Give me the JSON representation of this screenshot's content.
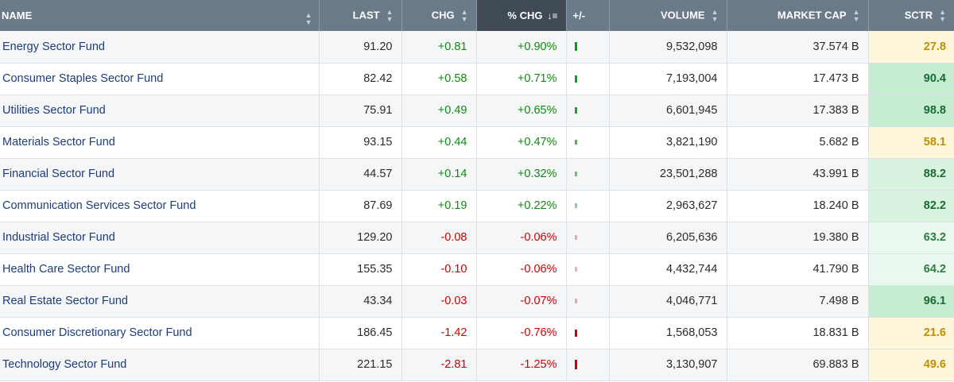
{
  "columns": {
    "name": "NAME",
    "last": "LAST",
    "chg": "CHG",
    "pct_chg": "% CHG",
    "plus_minus": "+/-",
    "volume": "VOLUME",
    "market_cap": "MARKET CAP",
    "sctr": "SCTR"
  },
  "icons": {
    "sort_neutral": "sort-updown-icon",
    "sort_active": "sort-descending-icon"
  },
  "colors": {
    "header_bg": "#6b7a89",
    "header_active_bg": "#3f4a55",
    "positive": "#108a10",
    "negative": "#d10000",
    "name_link": "#1d3d7a",
    "sctr_high_bg": "#c6edd2",
    "sctr_mid_bg": "#eaf7ee",
    "sctr_low_bg": "#fdf6da"
  },
  "rows": [
    {
      "name": "Energy Sector Fund",
      "last": "91.20",
      "chg": "+0.81",
      "pct_chg": "+0.90%",
      "direction": "up",
      "pct_value": 0.9,
      "volume": "9,532,098",
      "market_cap": "37.574 B",
      "sctr": "27.8",
      "sctr_value": 27.8
    },
    {
      "name": "Consumer Staples Sector Fund",
      "last": "82.42",
      "chg": "+0.58",
      "pct_chg": "+0.71%",
      "direction": "up",
      "pct_value": 0.71,
      "volume": "7,193,004",
      "market_cap": "17.473 B",
      "sctr": "90.4",
      "sctr_value": 90.4
    },
    {
      "name": "Utilities Sector Fund",
      "last": "75.91",
      "chg": "+0.49",
      "pct_chg": "+0.65%",
      "direction": "up",
      "pct_value": 0.65,
      "volume": "6,601,945",
      "market_cap": "17.383 B",
      "sctr": "98.8",
      "sctr_value": 98.8
    },
    {
      "name": "Materials Sector Fund",
      "last": "93.15",
      "chg": "+0.44",
      "pct_chg": "+0.47%",
      "direction": "up",
      "pct_value": 0.47,
      "volume": "3,821,190",
      "market_cap": "5.682 B",
      "sctr": "58.1",
      "sctr_value": 58.1
    },
    {
      "name": "Financial Sector Fund",
      "last": "44.57",
      "chg": "+0.14",
      "pct_chg": "+0.32%",
      "direction": "up",
      "pct_value": 0.32,
      "volume": "23,501,288",
      "market_cap": "43.991 B",
      "sctr": "88.2",
      "sctr_value": 88.2
    },
    {
      "name": "Communication Services Sector Fund",
      "last": "87.69",
      "chg": "+0.19",
      "pct_chg": "+0.22%",
      "direction": "up",
      "pct_value": 0.22,
      "volume": "2,963,627",
      "market_cap": "18.240 B",
      "sctr": "82.2",
      "sctr_value": 82.2
    },
    {
      "name": "Industrial Sector Fund",
      "last": "129.20",
      "chg": "-0.08",
      "pct_chg": "-0.06%",
      "direction": "down",
      "pct_value": -0.06,
      "volume": "6,205,636",
      "market_cap": "19.380 B",
      "sctr": "63.2",
      "sctr_value": 63.2
    },
    {
      "name": "Health Care Sector Fund",
      "last": "155.35",
      "chg": "-0.10",
      "pct_chg": "-0.06%",
      "direction": "down",
      "pct_value": -0.06,
      "volume": "4,432,744",
      "market_cap": "41.790 B",
      "sctr": "64.2",
      "sctr_value": 64.2
    },
    {
      "name": "Real Estate Sector Fund",
      "last": "43.34",
      "chg": "-0.03",
      "pct_chg": "-0.07%",
      "direction": "down",
      "pct_value": -0.07,
      "volume": "4,046,771",
      "market_cap": "7.498 B",
      "sctr": "96.1",
      "sctr_value": 96.1
    },
    {
      "name": "Consumer Discretionary Sector Fund",
      "last": "186.45",
      "chg": "-1.42",
      "pct_chg": "-0.76%",
      "direction": "down",
      "pct_value": -0.76,
      "volume": "1,568,053",
      "market_cap": "18.831 B",
      "sctr": "21.6",
      "sctr_value": 21.6
    },
    {
      "name": "Technology Sector Fund",
      "last": "221.15",
      "chg": "-2.81",
      "pct_chg": "-1.25%",
      "direction": "down",
      "pct_value": -1.25,
      "volume": "3,130,907",
      "market_cap": "69.883 B",
      "sctr": "49.6",
      "sctr_value": 49.6
    }
  ]
}
